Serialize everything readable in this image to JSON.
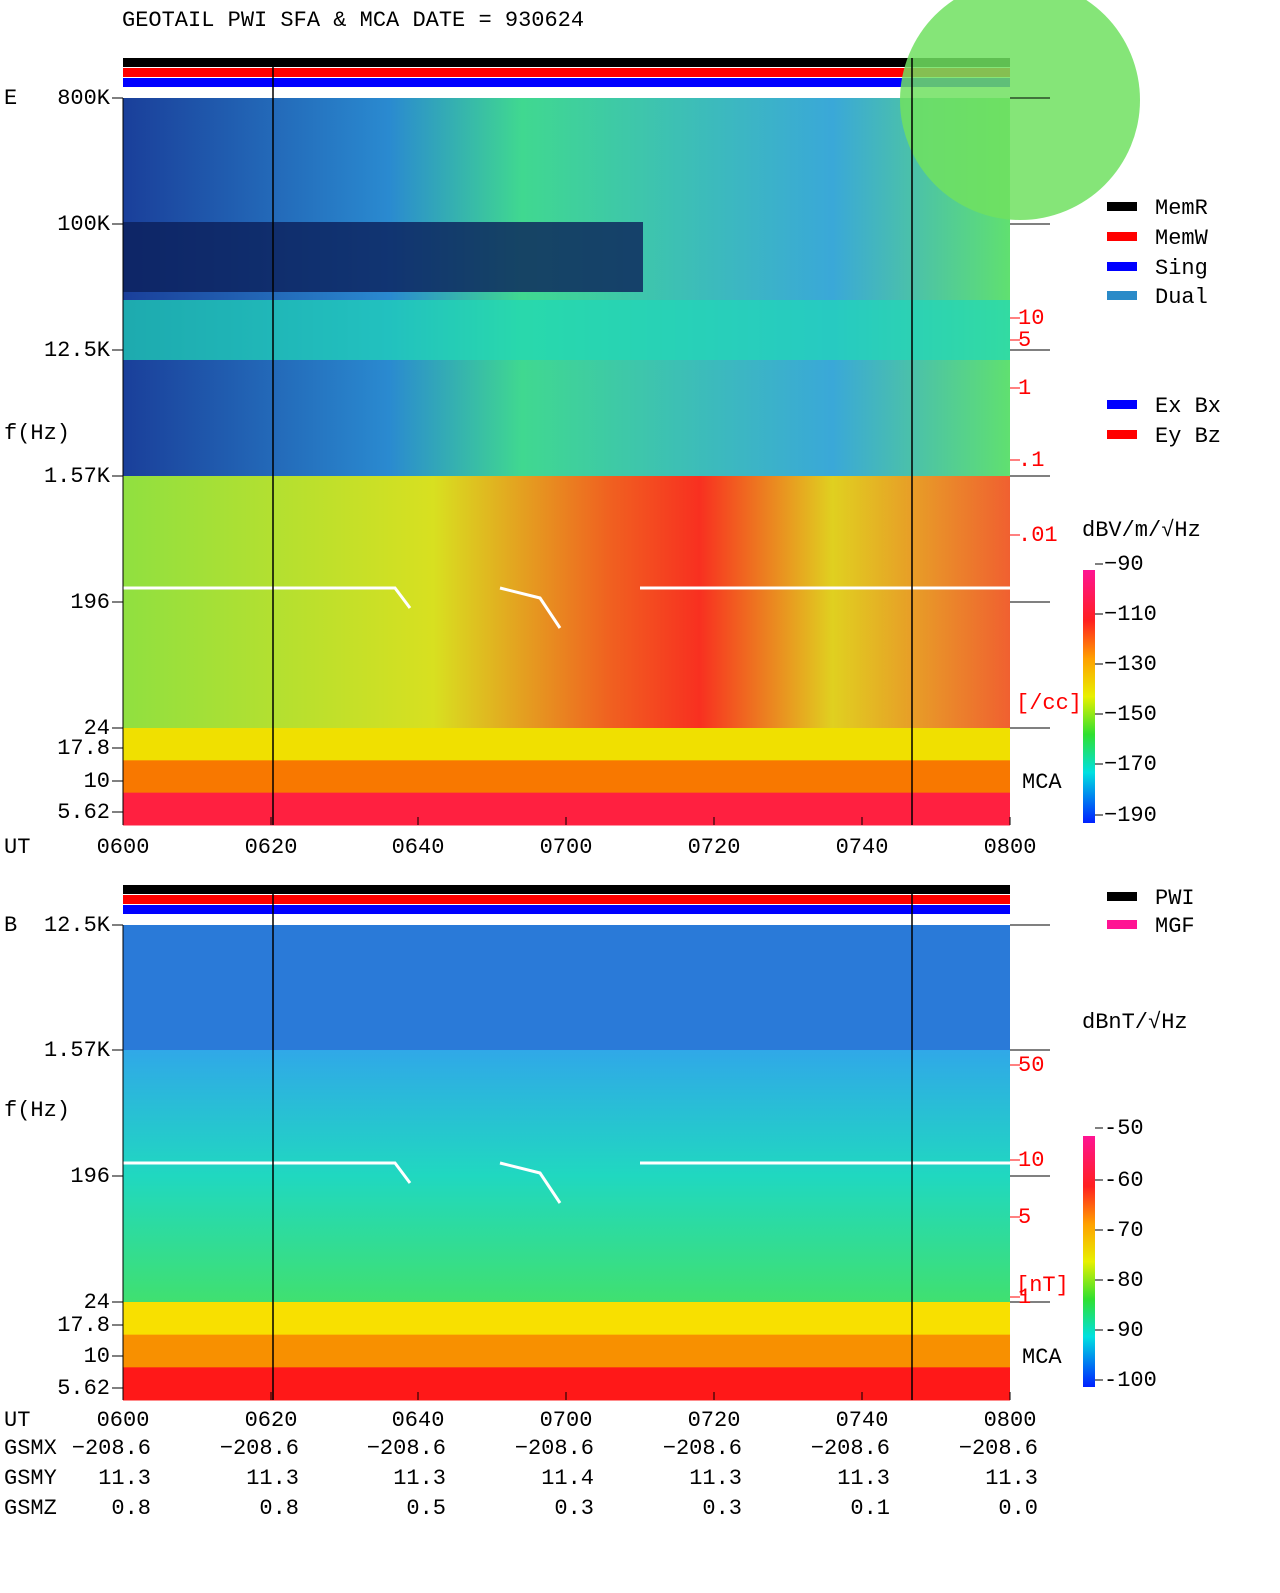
{
  "header": {
    "title": "GEOTAIL  PWI SFA & MCA   DATE = 930624"
  },
  "time_axis": {
    "label": "UT",
    "ticks": [
      "0600",
      "0620",
      "0640",
      "0700",
      "0720",
      "0740",
      "0800"
    ]
  },
  "panels": [
    {
      "label": "E",
      "yaxis_label": "f(Hz)",
      "freq_ticks": [
        "800K",
        "100K",
        "12.5K",
        "1.57K",
        "196",
        "24",
        "17.8",
        "10",
        "5.62"
      ],
      "right_ticks": [
        "10",
        "5",
        "1",
        ".1",
        ".01",
        "[/cc]"
      ],
      "mca": "MCA",
      "legend": [
        {
          "name": "MemR",
          "color": "#000000"
        },
        {
          "name": "MemW",
          "color": "#ff0000"
        },
        {
          "name": "Sing",
          "color": "#0000ff"
        },
        {
          "name": "Dual",
          "color": "#2a8ac8"
        },
        {
          "name": "Ex Bx",
          "color": "#0000ff"
        },
        {
          "name": "Ey Bz",
          "color": "#ff0000"
        }
      ],
      "unit": "dBV/m/√Hz",
      "colorbar_ticks": [
        "−90",
        "−110",
        "−130",
        "−150",
        "−170",
        "−190"
      ]
    },
    {
      "label": "B",
      "yaxis_label": "f(Hz)",
      "freq_ticks": [
        "12.5K",
        "1.57K",
        "196",
        "24",
        "17.8",
        "10",
        "5.62"
      ],
      "right_ticks": [
        "50",
        "10",
        "5",
        "1",
        "[nT]"
      ],
      "mca": "MCA",
      "legend": [
        {
          "name": "PWI",
          "color": "#000000"
        },
        {
          "name": "MGF",
          "color": "#ff1493"
        }
      ],
      "unit": "dBnT/√Hz",
      "colorbar_ticks": [
        "-50",
        "-60",
        "-70",
        "-80",
        "-90",
        "-100"
      ]
    }
  ],
  "orbit": {
    "rows": [
      {
        "label": "GSMX",
        "values": [
          "−208.6",
          "−208.6",
          "−208.6",
          "−208.6",
          "−208.6",
          "−208.6",
          "−208.6"
        ]
      },
      {
        "label": "GSMY",
        "values": [
          "11.3",
          "11.3",
          "11.3",
          "11.4",
          "11.3",
          "11.3",
          "11.3"
        ]
      },
      {
        "label": "GSMZ",
        "values": [
          "0.8",
          "0.8",
          "0.5",
          "0.3",
          "0.3",
          "0.1",
          "0.0"
        ]
      }
    ]
  }
}
